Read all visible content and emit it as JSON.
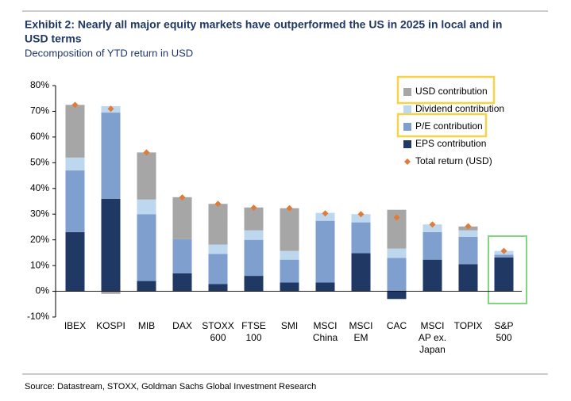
{
  "chart_data": {
    "type": "stacked-bar",
    "title": "Exhibit 2:  Nearly all major equity markets have outperformed the US in 2025 in local and in",
    "title_line2": "USD terms",
    "subtitle": "Decomposition of YTD return in USD",
    "source": "Source: Datastream, STOXX, Goldman Sachs Global Investment Research",
    "categories": [
      [
        "IBEX"
      ],
      [
        "KOSPI"
      ],
      [
        "MIB"
      ],
      [
        "DAX"
      ],
      [
        "STOXX",
        "600"
      ],
      [
        "FTSE",
        "100"
      ],
      [
        "SMI"
      ],
      [
        "MSCI",
        "China"
      ],
      [
        "MSCI",
        "EM"
      ],
      [
        "CAC"
      ],
      [
        "MSCI",
        "AP ex.",
        "Japan"
      ],
      [
        "TOPIX"
      ],
      [
        "S&P",
        "500"
      ]
    ],
    "series": [
      {
        "name": "EPS contribution",
        "color": "#1f3864",
        "values": [
          23,
          36,
          4,
          7,
          2.8,
          6,
          3.4,
          3.4,
          14.8,
          -3,
          12.3,
          10.5,
          13.2
        ]
      },
      {
        "name": "P/E contribution",
        "color": "#7f9fcf",
        "values": [
          24,
          33.5,
          26,
          13.3,
          11.7,
          14,
          8.9,
          24,
          12,
          13,
          10.7,
          10.7,
          1
        ]
      },
      {
        "name": "Dividend contribution",
        "color": "#bdd7ee",
        "values": [
          5,
          2.5,
          5.7,
          0,
          3.7,
          3.7,
          3.4,
          3.1,
          3.2,
          3.6,
          3,
          2.5,
          1.5
        ]
      },
      {
        "name": "USD contribution",
        "color": "#a6a6a6",
        "values": [
          20.5,
          -1,
          18.3,
          16.3,
          15.8,
          8.9,
          16.6,
          0,
          0,
          15.1,
          0,
          1.5,
          0
        ]
      }
    ],
    "total": {
      "name": "Total return (USD)",
      "color": "#e07b39",
      "values": [
        72.5,
        71,
        54,
        36.5,
        34,
        32.5,
        32.3,
        30.3,
        30,
        28.7,
        26,
        25.3,
        15.7
      ]
    },
    "ylim": [
      -10,
      80
    ],
    "yticks": [
      {
        "value": -10,
        "label": "-10%"
      },
      {
        "value": 0,
        "label": "0%"
      },
      {
        "value": 10,
        "label": "10%"
      },
      {
        "value": 20,
        "label": "20%"
      },
      {
        "value": 30,
        "label": "30%"
      },
      {
        "value": 40,
        "label": "40%"
      },
      {
        "value": 50,
        "label": "50%"
      },
      {
        "value": 60,
        "label": "60%"
      },
      {
        "value": 70,
        "label": "70%"
      },
      {
        "value": 80,
        "label": "80%"
      }
    ]
  }
}
